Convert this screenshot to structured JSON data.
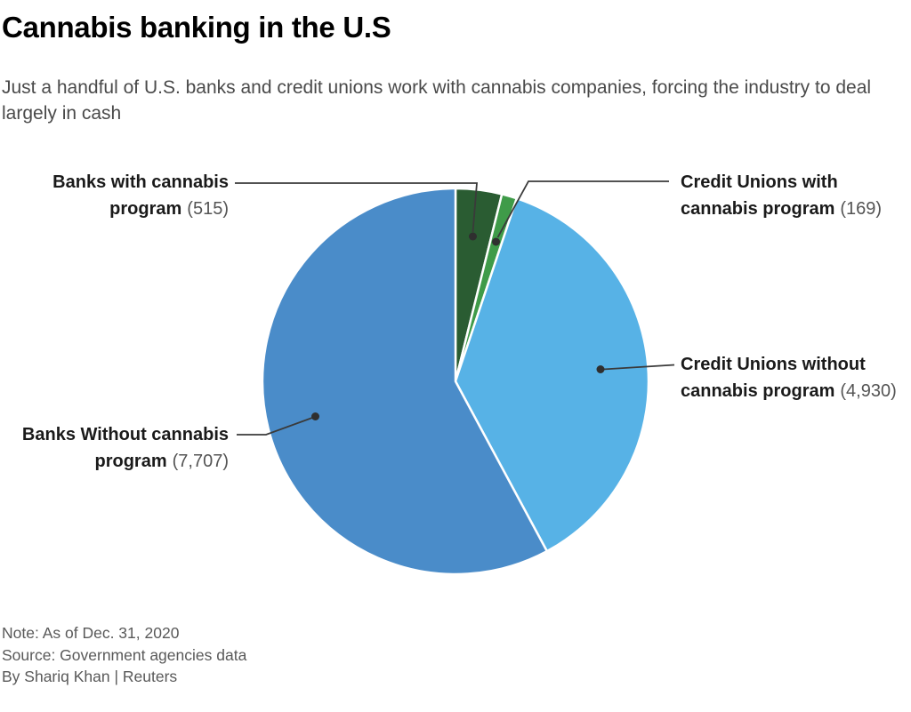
{
  "header": {
    "title": "Cannabis banking in the U.S",
    "subtitle": "Just a handful of U.S. banks and credit unions work with cannabis companies, forcing the industry to deal largely in cash"
  },
  "chart_data": {
    "type": "pie",
    "title": "Cannabis banking in the U.S",
    "total": 13321,
    "start_angle": "12 o'clock, clockwise",
    "separator_color": "#ffffff",
    "slices": [
      {
        "label": "Banks with cannabis program",
        "value": 515,
        "display_value": "(515)",
        "color": "#2a5c32",
        "label_lines": [
          "Banks with cannabis",
          "program"
        ]
      },
      {
        "label": "Credit Unions with cannabis program",
        "value": 169,
        "display_value": "(169)",
        "color": "#3f9b49",
        "label_lines": [
          "Credit Unions with",
          "cannabis program"
        ]
      },
      {
        "label": "Credit Unions without cannabis program",
        "value": 4930,
        "display_value": "(4,930)",
        "color": "#57b2e6",
        "label_lines": [
          "Credit Unions without",
          "cannabis program"
        ]
      },
      {
        "label": "Banks Without cannabis program",
        "value": 7707,
        "display_value": "(7,707)",
        "color": "#4a8cc9",
        "label_lines": [
          "Banks Without cannabis",
          "program"
        ]
      }
    ]
  },
  "footer": {
    "note": "Note: As of Dec. 31, 2020",
    "source": "Source: Government agencies data",
    "byline": "By Shariq Khan | Reuters"
  }
}
